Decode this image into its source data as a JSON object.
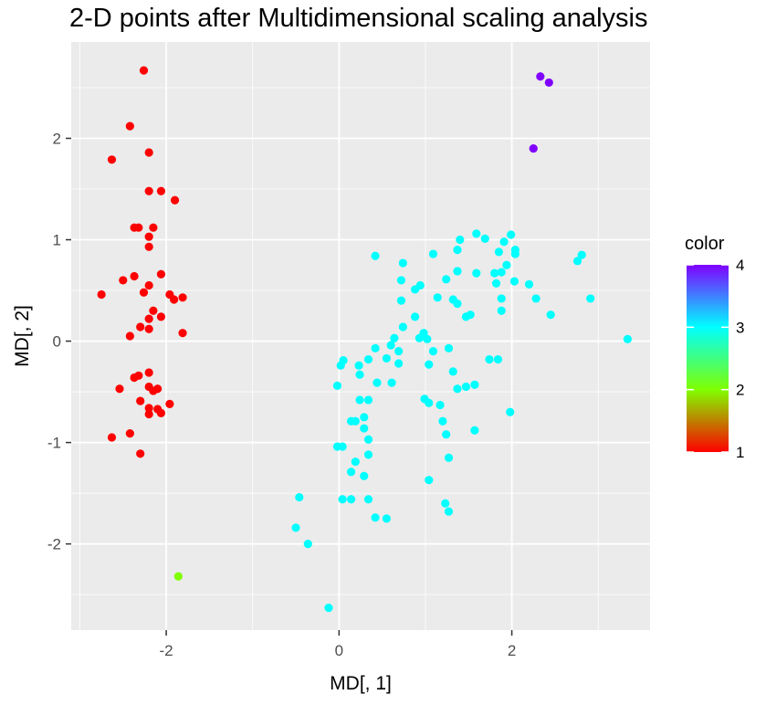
{
  "chart_data": {
    "type": "scatter",
    "title": "2-D points after Multidimensional scaling analysis",
    "xlabel": "MD[, 1]",
    "ylabel": "MD[, 2]",
    "xlim": [
      -3.1,
      3.6
    ],
    "ylim": [
      -2.85,
      2.95
    ],
    "x_ticks": [
      -2,
      0,
      2
    ],
    "y_ticks": [
      -2,
      -1,
      0,
      1,
      2
    ],
    "grid": true,
    "background_color": "#ebebeb",
    "grid_color": "#ffffff",
    "legend": {
      "title": "color",
      "placement": "right",
      "type": "colorbar",
      "ticks": [
        1,
        2,
        3,
        4
      ],
      "range": [
        1,
        4
      ],
      "gradient": [
        "#ff0000",
        "#80ff00",
        "#00ffff",
        "#8000ff"
      ]
    },
    "points": [
      {
        "x": -2.26,
        "y": 2.67,
        "color": 1
      },
      {
        "x": -2.42,
        "y": 2.12,
        "color": 1
      },
      {
        "x": -2.2,
        "y": 1.86,
        "color": 1
      },
      {
        "x": -2.63,
        "y": 1.79,
        "color": 1
      },
      {
        "x": -2.2,
        "y": 1.48,
        "color": 1
      },
      {
        "x": -2.06,
        "y": 1.48,
        "color": 1
      },
      {
        "x": -1.9,
        "y": 1.39,
        "color": 1
      },
      {
        "x": -2.37,
        "y": 1.12,
        "color": 1
      },
      {
        "x": -2.32,
        "y": 1.12,
        "color": 1
      },
      {
        "x": -2.15,
        "y": 1.12,
        "color": 1
      },
      {
        "x": -2.2,
        "y": 1.03,
        "color": 1
      },
      {
        "x": -2.2,
        "y": 0.93,
        "color": 1
      },
      {
        "x": -2.5,
        "y": 0.6,
        "color": 1
      },
      {
        "x": -2.37,
        "y": 0.64,
        "color": 1
      },
      {
        "x": -2.06,
        "y": 0.66,
        "color": 1
      },
      {
        "x": -2.26,
        "y": 0.48,
        "color": 1
      },
      {
        "x": -2.2,
        "y": 0.55,
        "color": 1
      },
      {
        "x": -2.75,
        "y": 0.46,
        "color": 1
      },
      {
        "x": -1.96,
        "y": 0.46,
        "color": 1
      },
      {
        "x": -1.91,
        "y": 0.41,
        "color": 1
      },
      {
        "x": -1.81,
        "y": 0.43,
        "color": 1
      },
      {
        "x": -2.15,
        "y": 0.3,
        "color": 1
      },
      {
        "x": -2.06,
        "y": 0.24,
        "color": 1
      },
      {
        "x": -2.2,
        "y": 0.22,
        "color": 1
      },
      {
        "x": -2.3,
        "y": 0.14,
        "color": 1
      },
      {
        "x": -2.2,
        "y": 0.12,
        "color": 1
      },
      {
        "x": -1.81,
        "y": 0.08,
        "color": 1
      },
      {
        "x": -2.42,
        "y": 0.05,
        "color": 1
      },
      {
        "x": -2.37,
        "y": -0.36,
        "color": 1
      },
      {
        "x": -2.32,
        "y": -0.34,
        "color": 1
      },
      {
        "x": -2.2,
        "y": -0.31,
        "color": 1
      },
      {
        "x": -2.2,
        "y": -0.45,
        "color": 1
      },
      {
        "x": -2.15,
        "y": -0.49,
        "color": 1
      },
      {
        "x": -2.54,
        "y": -0.47,
        "color": 1
      },
      {
        "x": -2.3,
        "y": -0.59,
        "color": 1
      },
      {
        "x": -2.1,
        "y": -0.47,
        "color": 1
      },
      {
        "x": -1.96,
        "y": -0.62,
        "color": 1
      },
      {
        "x": -2.2,
        "y": -0.66,
        "color": 1
      },
      {
        "x": -2.06,
        "y": -0.71,
        "color": 1
      },
      {
        "x": -2.1,
        "y": -0.67,
        "color": 1
      },
      {
        "x": -2.2,
        "y": -0.72,
        "color": 1
      },
      {
        "x": -2.42,
        "y": -0.91,
        "color": 1
      },
      {
        "x": -2.63,
        "y": -0.95,
        "color": 1
      },
      {
        "x": -2.3,
        "y": -1.11,
        "color": 1
      },
      {
        "x": -1.86,
        "y": -2.32,
        "color": 2
      },
      {
        "x": 2.33,
        "y": 2.61,
        "color": 4
      },
      {
        "x": 2.43,
        "y": 2.55,
        "color": 4
      },
      {
        "x": 2.25,
        "y": 1.9,
        "color": 4
      },
      {
        "x": 0.42,
        "y": 0.84,
        "color": 3
      },
      {
        "x": 0.74,
        "y": 0.77,
        "color": 3
      },
      {
        "x": 0.72,
        "y": 0.6,
        "color": 3
      },
      {
        "x": 0.94,
        "y": 0.55,
        "color": 3
      },
      {
        "x": 0.88,
        "y": 0.51,
        "color": 3
      },
      {
        "x": 0.72,
        "y": 0.4,
        "color": 3
      },
      {
        "x": 0.88,
        "y": 0.24,
        "color": 3
      },
      {
        "x": 0.74,
        "y": 0.14,
        "color": 3
      },
      {
        "x": 0.64,
        "y": 0.03,
        "color": 3
      },
      {
        "x": 0.6,
        "y": -0.04,
        "color": 3
      },
      {
        "x": 0.69,
        "y": -0.1,
        "color": 3
      },
      {
        "x": 0.55,
        "y": -0.17,
        "color": 3
      },
      {
        "x": 0.69,
        "y": -0.22,
        "color": 3
      },
      {
        "x": 0.42,
        "y": -0.07,
        "color": 3
      },
      {
        "x": 0.34,
        "y": -0.18,
        "color": 3
      },
      {
        "x": 0.23,
        "y": -0.24,
        "color": 3
      },
      {
        "x": 0.05,
        "y": -0.19,
        "color": 3
      },
      {
        "x": 0.02,
        "y": -0.24,
        "color": 3
      },
      {
        "x": 0.24,
        "y": -0.33,
        "color": 3
      },
      {
        "x": 0.44,
        "y": -0.41,
        "color": 3
      },
      {
        "x": 0.61,
        "y": -0.41,
        "color": 3
      },
      {
        "x": 0.99,
        "y": -0.57,
        "color": 3
      },
      {
        "x": 1.04,
        "y": -0.61,
        "color": 3
      },
      {
        "x": 0.24,
        "y": -0.58,
        "color": 3
      },
      {
        "x": 0.34,
        "y": -0.58,
        "color": 3
      },
      {
        "x": 0.29,
        "y": -0.75,
        "color": 3
      },
      {
        "x": 0.14,
        "y": -0.79,
        "color": 3
      },
      {
        "x": 0.19,
        "y": -0.79,
        "color": 3
      },
      {
        "x": 0.29,
        "y": -0.86,
        "color": 3
      },
      {
        "x": 0.34,
        "y": -0.97,
        "color": 3
      },
      {
        "x": -0.02,
        "y": -1.04,
        "color": 3
      },
      {
        "x": 0.04,
        "y": -1.04,
        "color": 3
      },
      {
        "x": 0.34,
        "y": -1.12,
        "color": 3
      },
      {
        "x": 0.19,
        "y": -1.19,
        "color": 3
      },
      {
        "x": 0.14,
        "y": -1.29,
        "color": 3
      },
      {
        "x": 0.29,
        "y": -1.33,
        "color": 3
      },
      {
        "x": -0.02,
        "y": -0.44,
        "color": 3
      },
      {
        "x": 0.04,
        "y": -1.56,
        "color": 3
      },
      {
        "x": 0.14,
        "y": -1.56,
        "color": 3
      },
      {
        "x": 0.34,
        "y": -1.56,
        "color": 3
      },
      {
        "x": -0.46,
        "y": -1.54,
        "color": 3
      },
      {
        "x": -0.5,
        "y": -1.84,
        "color": 3
      },
      {
        "x": -0.36,
        "y": -2.0,
        "color": 3
      },
      {
        "x": 0.42,
        "y": -1.74,
        "color": 3
      },
      {
        "x": 0.55,
        "y": -1.75,
        "color": 3
      },
      {
        "x": 1.04,
        "y": -1.37,
        "color": 3
      },
      {
        "x": 1.23,
        "y": -1.6,
        "color": 3
      },
      {
        "x": 1.27,
        "y": -1.68,
        "color": 3
      },
      {
        "x": -0.12,
        "y": -2.63,
        "color": 3
      },
      {
        "x": 1.09,
        "y": 0.86,
        "color": 3
      },
      {
        "x": 1.37,
        "y": 0.9,
        "color": 3
      },
      {
        "x": 1.4,
        "y": 1.0,
        "color": 3
      },
      {
        "x": 1.59,
        "y": 1.06,
        "color": 3
      },
      {
        "x": 1.69,
        "y": 1.01,
        "color": 3
      },
      {
        "x": 1.99,
        "y": 1.05,
        "color": 3
      },
      {
        "x": 1.91,
        "y": 0.98,
        "color": 3
      },
      {
        "x": 1.85,
        "y": 0.88,
        "color": 3
      },
      {
        "x": 2.04,
        "y": 0.9,
        "color": 3
      },
      {
        "x": 2.04,
        "y": 0.86,
        "color": 3
      },
      {
        "x": 1.94,
        "y": 0.75,
        "color": 3
      },
      {
        "x": 1.24,
        "y": 0.61,
        "color": 3
      },
      {
        "x": 1.37,
        "y": 0.69,
        "color": 3
      },
      {
        "x": 1.59,
        "y": 0.67,
        "color": 3
      },
      {
        "x": 1.8,
        "y": 0.67,
        "color": 3
      },
      {
        "x": 1.88,
        "y": 0.68,
        "color": 3
      },
      {
        "x": 1.82,
        "y": 0.57,
        "color": 3
      },
      {
        "x": 2.03,
        "y": 0.59,
        "color": 3
      },
      {
        "x": 2.2,
        "y": 0.56,
        "color": 3
      },
      {
        "x": 2.76,
        "y": 0.79,
        "color": 3
      },
      {
        "x": 2.81,
        "y": 0.85,
        "color": 3
      },
      {
        "x": 2.91,
        "y": 0.42,
        "color": 3
      },
      {
        "x": 2.28,
        "y": 0.42,
        "color": 3
      },
      {
        "x": 1.88,
        "y": 0.42,
        "color": 3
      },
      {
        "x": 1.88,
        "y": 0.3,
        "color": 3
      },
      {
        "x": 1.32,
        "y": 0.41,
        "color": 3
      },
      {
        "x": 1.37,
        "y": 0.37,
        "color": 3
      },
      {
        "x": 1.14,
        "y": 0.43,
        "color": 3
      },
      {
        "x": 1.52,
        "y": 0.26,
        "color": 3
      },
      {
        "x": 1.47,
        "y": 0.24,
        "color": 3
      },
      {
        "x": 2.45,
        "y": 0.26,
        "color": 3
      },
      {
        "x": 0.98,
        "y": 0.08,
        "color": 3
      },
      {
        "x": 0.93,
        "y": 0.03,
        "color": 3
      },
      {
        "x": 1.02,
        "y": 0.02,
        "color": 3
      },
      {
        "x": 1.27,
        "y": -0.07,
        "color": 3
      },
      {
        "x": 1.09,
        "y": -0.1,
        "color": 3
      },
      {
        "x": 1.04,
        "y": -0.23,
        "color": 3
      },
      {
        "x": 1.32,
        "y": -0.3,
        "color": 3
      },
      {
        "x": 1.37,
        "y": -0.47,
        "color": 3
      },
      {
        "x": 1.47,
        "y": -0.45,
        "color": 3
      },
      {
        "x": 1.57,
        "y": -0.43,
        "color": 3
      },
      {
        "x": 1.74,
        "y": -0.18,
        "color": 3
      },
      {
        "x": 1.84,
        "y": -0.18,
        "color": 3
      },
      {
        "x": 1.98,
        "y": -0.7,
        "color": 3
      },
      {
        "x": 1.57,
        "y": -0.88,
        "color": 3
      },
      {
        "x": 1.17,
        "y": -0.63,
        "color": 3
      },
      {
        "x": 1.2,
        "y": -0.79,
        "color": 3
      },
      {
        "x": 1.24,
        "y": -0.92,
        "color": 3
      },
      {
        "x": 1.27,
        "y": -1.15,
        "color": 3
      },
      {
        "x": 3.34,
        "y": 0.02,
        "color": 3
      }
    ]
  }
}
